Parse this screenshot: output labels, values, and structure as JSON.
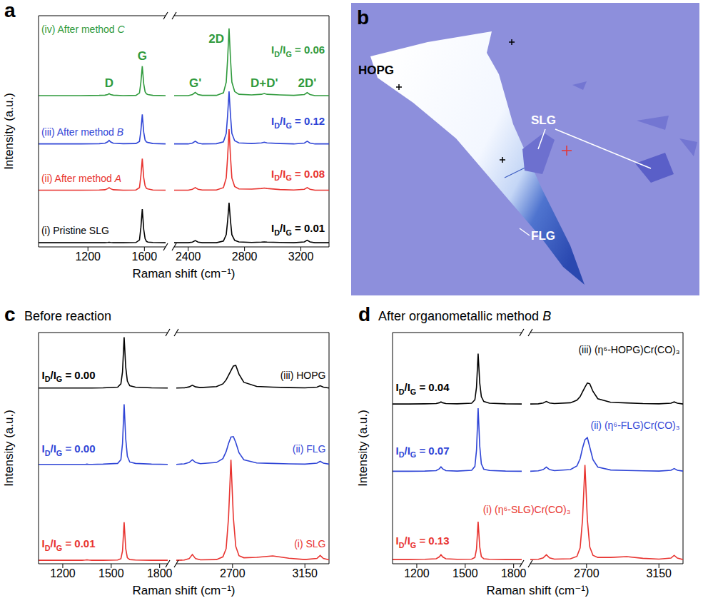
{
  "chart_data": [
    {
      "type": "line",
      "panel_label": "a",
      "x_label": "Raman shift (cm⁻¹)",
      "y_label": "Intensity (a.u.)",
      "tick_labels": "x",
      "xlim": [
        [
          850,
          1750
        ],
        [
          2300,
          3400
        ]
      ],
      "xticks": [
        [
          1200,
          1600
        ],
        [
          2400,
          2800,
          3200
        ]
      ],
      "ylim": [
        0,
        110
      ],
      "x": [
        850,
        1000,
        1150,
        1280,
        1320,
        1340,
        1350,
        1360,
        1380,
        1450,
        1540,
        1565,
        1575,
        1585,
        1595,
        1605,
        1615,
        1625,
        1660,
        1750,
        2300,
        2400,
        2430,
        2450,
        2470,
        2500,
        2600,
        2650,
        2670,
        2680,
        2690,
        2700,
        2710,
        2730,
        2760,
        2850,
        2920,
        2940,
        2960,
        3050,
        3150,
        3225,
        3245,
        3265,
        3300,
        3400
      ],
      "series": [
        {
          "color": "#000000",
          "values": [
            2,
            2,
            2,
            2,
            2,
            2.1,
            2.2,
            2.1,
            2,
            2,
            2.1,
            3.3,
            9.2,
            18,
            8.4,
            3.9,
            2.6,
            2.3,
            2.1,
            2,
            2,
            2,
            2.3,
            3,
            2.3,
            2,
            2,
            2.8,
            5.8,
            12.5,
            21,
            12.5,
            5.8,
            3.1,
            2.4,
            2.1,
            2.3,
            2.4,
            2.3,
            2.1,
            2,
            2.4,
            3.2,
            2.4,
            2,
            2
          ]
        },
        {
          "color": "#e8332f",
          "values": [
            27,
            27,
            27,
            27.1,
            27.2,
            27.7,
            28.2,
            27.7,
            27.2,
            27,
            27.1,
            28.2,
            33.8,
            42,
            33,
            29,
            27.8,
            27.6,
            27.1,
            27,
            27,
            27,
            27.4,
            28.2,
            27.4,
            27.1,
            27.1,
            28.2,
            32.8,
            43,
            56,
            43,
            32.8,
            28.7,
            27.6,
            27.5,
            27.8,
            28,
            27.8,
            27.3,
            27.1,
            27.4,
            28.2,
            27.4,
            27,
            27
          ]
        },
        {
          "color": "#2f45d6",
          "values": [
            49,
            49,
            49,
            49.1,
            49.3,
            50,
            50.7,
            50,
            49.3,
            49.1,
            49.2,
            50.2,
            55.3,
            63,
            54.6,
            50.8,
            49.9,
            49.7,
            49.2,
            49,
            49,
            49,
            49.4,
            50.3,
            49.4,
            49,
            49.1,
            50,
            54,
            62.8,
            74,
            62.8,
            54,
            50.5,
            49.5,
            49.2,
            49.5,
            49.8,
            49.5,
            49.2,
            49,
            49.4,
            50.3,
            49.4,
            49,
            49
          ]
        },
        {
          "color": "#2f9a3c",
          "values": [
            72,
            72,
            72,
            72.1,
            72.2,
            72.5,
            72.9,
            72.5,
            72.2,
            72,
            72.1,
            73.2,
            78.3,
            86,
            77.6,
            73.8,
            72.8,
            72.5,
            72.1,
            72,
            72,
            72,
            72.5,
            73.5,
            72.5,
            72.1,
            72.1,
            73.3,
            78.4,
            89.6,
            104,
            89.6,
            78.4,
            73.9,
            72.6,
            72.3,
            72.6,
            73,
            72.6,
            72.3,
            72.1,
            72.5,
            73.4,
            72.5,
            72,
            72
          ]
        }
      ],
      "annotations": [
        {
          "text": "(i) Pristine SLG",
          "x": 870,
          "y": 6,
          "color": "#000000",
          "anchor": "start"
        },
        {
          "text": "(ii) After method A",
          "x": 870,
          "y": 31,
          "color": "#e8332f",
          "anchor": "start"
        },
        {
          "text": "(iii) After method B",
          "x": 870,
          "y": 53,
          "color": "#2f45d6",
          "anchor": "start"
        },
        {
          "text": "(iv) After method C",
          "x": 870,
          "y": 102,
          "color": "#2f9a3c",
          "anchor": "start"
        },
        {
          "text": "ID/IG = 0.01",
          "x": 3370,
          "y": 7,
          "color": "#000000",
          "anchor": "end"
        },
        {
          "text": "ID/IG = 0.08",
          "x": 3370,
          "y": 33,
          "color": "#e8332f",
          "anchor": "end"
        },
        {
          "text": "ID/IG = 0.12",
          "x": 3370,
          "y": 58,
          "color": "#2f45d6",
          "anchor": "end"
        },
        {
          "text": "ID/IG = 0.06",
          "x": 3370,
          "y": 92,
          "color": "#2f9a3c",
          "anchor": "end"
        },
        {
          "text": "D",
          "x": 1350,
          "y": 76,
          "color": "#2f9a3c",
          "anchor": "middle"
        },
        {
          "text": "G",
          "x": 1585,
          "y": 89,
          "color": "#2f9a3c",
          "anchor": "middle"
        },
        {
          "text": "G'",
          "x": 2450,
          "y": 76,
          "color": "#2f9a3c",
          "anchor": "middle"
        },
        {
          "text": "2D",
          "x": 2600,
          "y": 97,
          "color": "#2f9a3c",
          "anchor": "middle"
        },
        {
          "text": "D+D'",
          "x": 2940,
          "y": 76,
          "color": "#2f9a3c",
          "anchor": "middle"
        },
        {
          "text": "2D'",
          "x": 3245,
          "y": 76,
          "color": "#2f9a3c",
          "anchor": "middle"
        }
      ]
    },
    {
      "type": "image",
      "panel_label": "b",
      "labels": [
        "HOPG",
        "SLG",
        "FLG"
      ]
    },
    {
      "type": "line",
      "panel_label": "c",
      "title": "Before reaction",
      "x_label": "Raman shift (cm⁻¹)",
      "y_label": "Intensity (a.u.)",
      "tick_labels": "x",
      "xlim": [
        [
          1050,
          1850
        ],
        [
          2350,
          3300
        ]
      ],
      "xticks": [
        [
          1200,
          1500,
          1800
        ],
        [
          2700,
          3150
        ]
      ],
      "ylim": [
        0,
        100
      ],
      "x": [
        1050,
        1150,
        1250,
        1320,
        1340,
        1350,
        1360,
        1380,
        1450,
        1540,
        1560,
        1570,
        1580,
        1590,
        1600,
        1615,
        1650,
        1750,
        1850,
        2350,
        2400,
        2430,
        2450,
        2470,
        2500,
        2600,
        2640,
        2660,
        2675,
        2690,
        2705,
        2720,
        2740,
        2770,
        2850,
        2950,
        3050,
        3150,
        3225,
        3245,
        3265,
        3300
      ],
      "series": [
        {
          "color": "#e8332f",
          "values": [
            1.5,
            1.5,
            1.5,
            1.5,
            1.6,
            1.7,
            1.6,
            1.5,
            1.5,
            1.6,
            2.2,
            5.5,
            18,
            6.5,
            2.6,
            1.8,
            1.6,
            1.5,
            1.5,
            1.5,
            1.6,
            2.2,
            4,
            2.2,
            1.7,
            1.8,
            3,
            6.5,
            20,
            45,
            20,
            7.5,
            3.5,
            2.6,
            2.8,
            3.4,
            2.4,
            1.8,
            2.3,
            3.6,
            2.3,
            1.7
          ]
        },
        {
          "color": "#2f45d6",
          "values": [
            43,
            43,
            43,
            43,
            43,
            43.1,
            43,
            43,
            43.1,
            43.4,
            45,
            52,
            69,
            54,
            46.5,
            44,
            43.4,
            43.1,
            43,
            43,
            43.2,
            43.8,
            45,
            43.8,
            43.3,
            43.8,
            45.5,
            48.5,
            52,
            54.8,
            55,
            52.5,
            48,
            45,
            43.6,
            43.4,
            43.2,
            43.1,
            43.5,
            44.3,
            43.5,
            43.1
          ]
        },
        {
          "color": "#000000",
          "values": [
            76,
            76,
            76,
            76,
            76,
            76,
            76,
            76,
            76.1,
            76.4,
            77.8,
            83,
            98,
            85,
            79,
            77,
            76.4,
            76.1,
            76,
            76,
            76.1,
            76.5,
            77.2,
            76.5,
            76.2,
            76.6,
            77.8,
            79.5,
            81.5,
            83.5,
            85.5,
            85.8,
            82,
            78.5,
            76.7,
            76.4,
            76.2,
            76.1,
            76.4,
            77,
            76.4,
            76
          ]
        }
      ],
      "annotations": [
        {
          "text": "ID/IG = 0.01",
          "x": 1070,
          "y": 7,
          "color": "#e8332f",
          "anchor": "start"
        },
        {
          "text": "(i) SLG",
          "x": 3280,
          "y": 7,
          "color": "#e8332f",
          "anchor": "end"
        },
        {
          "text": "ID/IG = 0.00",
          "x": 1070,
          "y": 48,
          "color": "#2f45d6",
          "anchor": "start"
        },
        {
          "text": "(ii) FLG",
          "x": 3280,
          "y": 48,
          "color": "#2f45d6",
          "anchor": "end"
        },
        {
          "text": "ID/IG = 0.00",
          "x": 1070,
          "y": 80,
          "color": "#000000",
          "anchor": "start"
        },
        {
          "text": "(iii) HOPG",
          "x": 3280,
          "y": 80,
          "color": "#000000",
          "anchor": "end"
        }
      ]
    },
    {
      "type": "line",
      "panel_label": "d",
      "title": "After organometallic method B",
      "x_label": "Raman shift (cm⁻¹)",
      "y_label": "Intensity (a.u.)",
      "tick_labels": "x",
      "xlim": [
        [
          1050,
          1850
        ],
        [
          2350,
          3300
        ]
      ],
      "xticks": [
        [
          1200,
          1500,
          1800
        ],
        [
          2700,
          3150
        ]
      ],
      "ylim": [
        0,
        110
      ],
      "x": [
        1050,
        1150,
        1250,
        1320,
        1340,
        1350,
        1360,
        1380,
        1450,
        1540,
        1560,
        1570,
        1580,
        1590,
        1600,
        1615,
        1650,
        1750,
        1850,
        2350,
        2400,
        2430,
        2450,
        2470,
        2500,
        2600,
        2640,
        2660,
        2675,
        2690,
        2705,
        2720,
        2740,
        2770,
        2850,
        2950,
        3050,
        3150,
        3225,
        3245,
        3265,
        3300
      ],
      "series": [
        {
          "color": "#e8332f",
          "values": [
            2,
            2,
            2.1,
            2.4,
            3.3,
            4.3,
            3.3,
            2.4,
            2.1,
            2.2,
            3,
            7,
            20,
            8,
            3.4,
            2.4,
            2.1,
            2,
            2,
            2,
            2.1,
            2.8,
            4.3,
            2.8,
            2.2,
            2.4,
            3.5,
            7.5,
            21,
            47,
            21,
            8,
            4,
            3,
            3,
            3.4,
            2.6,
            2.2,
            2.7,
            4,
            2.7,
            2
          ]
        },
        {
          "color": "#2f45d6",
          "values": [
            44,
            44,
            44.1,
            44.3,
            45.2,
            46.1,
            45.2,
            44.3,
            44.1,
            44.5,
            46.3,
            54,
            74,
            56,
            47.5,
            45,
            44.4,
            44.1,
            44,
            44,
            44.2,
            44.8,
            46,
            44.8,
            44.3,
            44.8,
            46.5,
            50,
            55,
            59,
            60,
            55.5,
            49.5,
            46,
            44.6,
            44.4,
            44.2,
            44.1,
            44.5,
            45.3,
            44.5,
            44.1
          ]
        },
        {
          "color": "#000000",
          "values": [
            76,
            76,
            76.1,
            76.2,
            76.6,
            77,
            76.6,
            76.2,
            76.1,
            76.4,
            78,
            84,
            100,
            86,
            79.5,
            77.2,
            76.4,
            76.1,
            76,
            76,
            76.1,
            76.5,
            77.2,
            76.5,
            76.2,
            76.6,
            77.8,
            79.5,
            81.8,
            84,
            86,
            85.6,
            82,
            78.5,
            76.8,
            76.5,
            76.2,
            76.1,
            76.4,
            77,
            76.4,
            76
          ]
        }
      ],
      "annotations": [
        {
          "text": "ID/IG = 0.13",
          "x": 1070,
          "y": 9,
          "color": "#e8332f",
          "anchor": "start"
        },
        {
          "text": "(i) (η⁶-SLG)Cr(CO)₃",
          "x": 1610,
          "y": 24,
          "color": "#e8332f",
          "anchor": "start"
        },
        {
          "text": "ID/IG = 0.07",
          "x": 1070,
          "y": 52,
          "color": "#2f45d6",
          "anchor": "start"
        },
        {
          "text": "(ii) (η⁶-FLG)Cr(CO)₃",
          "x": 3280,
          "y": 64,
          "color": "#2f45d6",
          "anchor": "end"
        },
        {
          "text": "ID/IG = 0.04",
          "x": 1070,
          "y": 82,
          "color": "#000000",
          "anchor": "start"
        },
        {
          "text": "(iii) (η⁶-HOPG)Cr(CO)₃",
          "x": 3280,
          "y": 100,
          "color": "#000000",
          "anchor": "end"
        }
      ]
    }
  ]
}
